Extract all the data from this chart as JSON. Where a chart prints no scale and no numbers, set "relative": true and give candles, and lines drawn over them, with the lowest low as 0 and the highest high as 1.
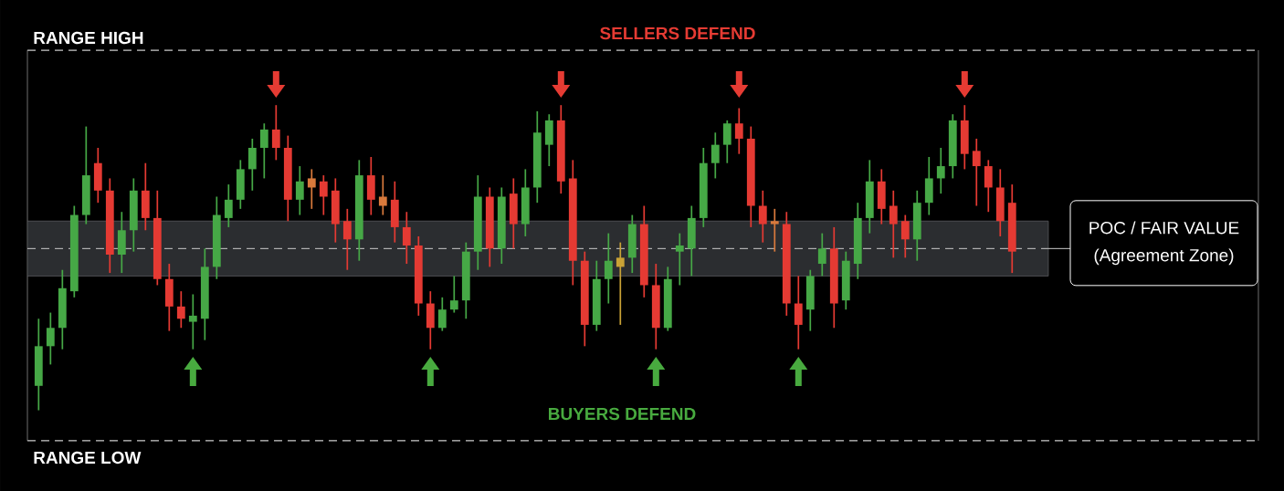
{
  "chart_data": {
    "type": "candlestick",
    "relative": true,
    "categories": [
      null,
      null,
      null,
      null,
      null,
      null,
      null,
      null,
      null,
      null,
      null,
      null,
      null,
      null,
      null,
      null,
      null,
      null,
      null,
      null,
      null,
      null,
      null,
      null,
      null,
      null,
      null,
      null,
      null,
      null,
      null,
      null,
      null,
      null,
      null,
      null,
      null,
      null,
      null,
      null,
      null,
      null,
      null,
      null,
      null,
      null,
      null,
      null,
      null,
      null,
      null,
      null,
      null,
      null,
      null,
      null,
      null,
      null,
      null,
      null,
      null,
      null,
      null,
      null,
      null,
      null,
      null,
      null,
      null,
      null,
      null,
      null,
      null,
      null,
      null,
      null,
      null,
      null,
      null,
      null,
      null,
      null,
      null
    ],
    "ohlc": [
      [
        0.08,
        0.3,
        0.0,
        0.21
      ],
      [
        0.21,
        0.32,
        0.15,
        0.27
      ],
      [
        0.27,
        0.46,
        0.2,
        0.4
      ],
      [
        0.39,
        0.67,
        0.37,
        0.64
      ],
      [
        0.64,
        0.93,
        0.61,
        0.77
      ],
      [
        0.81,
        0.86,
        0.68,
        0.72
      ],
      [
        0.72,
        0.76,
        0.45,
        0.51
      ],
      [
        0.51,
        0.65,
        0.45,
        0.59
      ],
      [
        0.59,
        0.76,
        0.52,
        0.72
      ],
      [
        0.72,
        0.81,
        0.59,
        0.63
      ],
      [
        0.63,
        0.72,
        0.41,
        0.43
      ],
      [
        0.43,
        0.48,
        0.26,
        0.34
      ],
      [
        0.34,
        0.39,
        0.27,
        0.3
      ],
      [
        0.29,
        0.38,
        0.2,
        0.31
      ],
      [
        0.3,
        0.53,
        0.23,
        0.47
      ],
      [
        0.47,
        0.7,
        0.43,
        0.64
      ],
      [
        0.63,
        0.74,
        0.6,
        0.69
      ],
      [
        0.69,
        0.82,
        0.66,
        0.79
      ],
      [
        0.79,
        0.89,
        0.72,
        0.86
      ],
      [
        0.86,
        0.94,
        0.76,
        0.92
      ],
      [
        0.92,
        1.0,
        0.82,
        0.86
      ],
      [
        0.86,
        0.9,
        0.62,
        0.69
      ],
      [
        0.69,
        0.8,
        0.64,
        0.75
      ],
      [
        0.76,
        0.79,
        0.66,
        0.73
      ],
      [
        0.75,
        0.77,
        0.64,
        0.7
      ],
      [
        0.72,
        0.76,
        0.55,
        0.61
      ],
      [
        0.62,
        0.66,
        0.46,
        0.56
      ],
      [
        0.56,
        0.82,
        0.49,
        0.77
      ],
      [
        0.77,
        0.83,
        0.64,
        0.69
      ],
      [
        0.7,
        0.77,
        0.64,
        0.67
      ],
      [
        0.69,
        0.75,
        0.55,
        0.6
      ],
      [
        0.6,
        0.65,
        0.48,
        0.54
      ],
      [
        0.54,
        0.57,
        0.31,
        0.35
      ],
      [
        0.35,
        0.39,
        0.2,
        0.27
      ],
      [
        0.27,
        0.37,
        0.26,
        0.33
      ],
      [
        0.33,
        0.44,
        0.32,
        0.36
      ],
      [
        0.36,
        0.55,
        0.3,
        0.52
      ],
      [
        0.52,
        0.77,
        0.46,
        0.7
      ],
      [
        0.7,
        0.73,
        0.47,
        0.53
      ],
      [
        0.53,
        0.73,
        0.48,
        0.7
      ],
      [
        0.71,
        0.76,
        0.53,
        0.61
      ],
      [
        0.61,
        0.79,
        0.57,
        0.73
      ],
      [
        0.73,
        0.98,
        0.68,
        0.91
      ],
      [
        0.87,
        0.97,
        0.8,
        0.95
      ],
      [
        0.95,
        1.0,
        0.71,
        0.75
      ],
      [
        0.76,
        0.82,
        0.41,
        0.49
      ],
      [
        0.49,
        0.52,
        0.21,
        0.28
      ],
      [
        0.28,
        0.49,
        0.26,
        0.43
      ],
      [
        0.43,
        0.58,
        0.35,
        0.49
      ],
      [
        0.5,
        0.55,
        0.28,
        0.47
      ],
      [
        0.5,
        0.64,
        0.45,
        0.61
      ],
      [
        0.61,
        0.67,
        0.37,
        0.41
      ],
      [
        0.41,
        0.48,
        0.2,
        0.27
      ],
      [
        0.27,
        0.47,
        0.26,
        0.43
      ],
      [
        0.52,
        0.58,
        0.41,
        0.54
      ],
      [
        0.53,
        0.67,
        0.44,
        0.63
      ],
      [
        0.63,
        0.86,
        0.6,
        0.81
      ],
      [
        0.81,
        0.91,
        0.76,
        0.87
      ],
      [
        0.87,
        0.95,
        0.81,
        0.94
      ],
      [
        0.94,
        0.99,
        0.84,
        0.89
      ],
      [
        0.89,
        0.93,
        0.6,
        0.67
      ],
      [
        0.67,
        0.72,
        0.55,
        0.61
      ],
      [
        0.62,
        0.66,
        0.52,
        0.61
      ],
      [
        0.61,
        0.65,
        0.31,
        0.35
      ],
      [
        0.35,
        0.44,
        0.2,
        0.28
      ],
      [
        0.33,
        0.46,
        0.26,
        0.44
      ],
      [
        0.48,
        0.58,
        0.44,
        0.53
      ],
      [
        0.53,
        0.6,
        0.27,
        0.35
      ],
      [
        0.36,
        0.52,
        0.33,
        0.49
      ],
      [
        0.48,
        0.68,
        0.43,
        0.63
      ],
      [
        0.63,
        0.82,
        0.58,
        0.75
      ],
      [
        0.75,
        0.79,
        0.61,
        0.66
      ],
      [
        0.67,
        0.72,
        0.5,
        0.61
      ],
      [
        0.62,
        0.64,
        0.5,
        0.56
      ],
      [
        0.56,
        0.72,
        0.49,
        0.68
      ],
      [
        0.68,
        0.83,
        0.64,
        0.76
      ],
      [
        0.76,
        0.86,
        0.71,
        0.8
      ],
      [
        0.8,
        0.97,
        0.76,
        0.95
      ],
      [
        0.95,
        1.0,
        0.79,
        0.84
      ],
      [
        0.85,
        0.89,
        0.67,
        0.8
      ],
      [
        0.8,
        0.82,
        0.65,
        0.73
      ],
      [
        0.73,
        0.79,
        0.57,
        0.62
      ],
      [
        0.68,
        0.74,
        0.45,
        0.52
      ]
    ],
    "colors": [
      "#46a846",
      "#46a846",
      "#46a846",
      "#46a846",
      "#46a846",
      "#e53a33",
      "#e53a33",
      "#46a846",
      "#46a846",
      "#e53a33",
      "#e53a33",
      "#e53a33",
      "#e53a33",
      "#46a846",
      "#46a846",
      "#46a846",
      "#46a846",
      "#46a846",
      "#46a846",
      "#46a846",
      "#e53a33",
      "#e53a33",
      "#46a846",
      "#d97a3c",
      "#e53a33",
      "#e53a33",
      "#e53a33",
      "#46a846",
      "#e53a33",
      "#d97a3c",
      "#e53a33",
      "#e53a33",
      "#e53a33",
      "#e53a33",
      "#46a846",
      "#46a846",
      "#46a846",
      "#46a846",
      "#e53a33",
      "#46a846",
      "#e53a33",
      "#46a846",
      "#46a846",
      "#46a846",
      "#e53a33",
      "#e53a33",
      "#e53a33",
      "#46a846",
      "#46a846",
      "#c9a236",
      "#46a846",
      "#e53a33",
      "#e53a33",
      "#46a846",
      "#46a846",
      "#46a846",
      "#46a846",
      "#46a846",
      "#46a846",
      "#e53a33",
      "#e53a33",
      "#e53a33",
      "#d97a3c",
      "#e53a33",
      "#e53a33",
      "#46a846",
      "#46a846",
      "#e53a33",
      "#46a846",
      "#46a846",
      "#46a846",
      "#e53a33",
      "#e53a33",
      "#e53a33",
      "#46a846",
      "#46a846",
      "#46a846",
      "#46a846",
      "#e53a33",
      "#e53a33",
      "#e53a33",
      "#e53a33",
      "#e53a33"
    ],
    "ref_lines": [
      {
        "axis": "y",
        "value": 1.18,
        "label": "RANGE HIGH",
        "color": "#cccccc",
        "line_style": "dashed"
      },
      {
        "axis": "y",
        "value": 0.53,
        "label": "POC / FAIR VALUE",
        "color": "#cccccc",
        "line_style": "dashed"
      },
      {
        "axis": "y",
        "value": -0.1,
        "label": "RANGE LOW",
        "color": "#cccccc",
        "line_style": "dashed"
      }
    ],
    "bands": [
      {
        "axis": "y",
        "from": 0.44,
        "to": 0.62,
        "label": "(Agreement Zone)",
        "color": "#2b2d30"
      }
    ],
    "annotations": [
      "SELLERS DEFEND",
      "BUYERS DEFEND"
    ]
  }
}
